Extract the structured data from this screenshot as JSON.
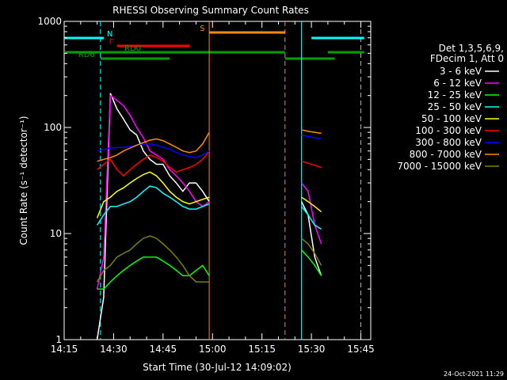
{
  "chart_data": {
    "type": "line",
    "title": "RHESSI Observing Summary Count Rates",
    "xlabel": "Start Time (30-Jul-12 14:09:02)",
    "ylabel": "Count Rate (s⁻¹ detector⁻¹)",
    "ylog": true,
    "ylim": [
      1,
      1000
    ],
    "xlim_minutes": [
      14.15,
      15.48
    ],
    "x_ticks": [
      "14:15",
      "14:30",
      "14:45",
      "15:00",
      "15:15",
      "15:30",
      "15:45"
    ],
    "y_ticks": [
      "1",
      "10",
      "100",
      "1000"
    ],
    "legend_header": [
      "Det 1,3,5,6,9,",
      "FDecim 1, Att 0"
    ],
    "legend_position": "right",
    "footer_date": "24-Oct-2021 11:29",
    "flags": [
      {
        "label": "N",
        "color": "#00ffff",
        "segments": [
          [
            14.15,
            14.27
          ],
          [
            15.3,
            15.46
          ]
        ]
      },
      {
        "label": "F",
        "color": "#ff0000",
        "segments": [
          [
            14.31,
            14.53
          ]
        ]
      },
      {
        "label": "S",
        "color": "#ff8c00",
        "segments": [
          [
            14.59,
            15.22
          ]
        ]
      },
      {
        "label": "RD0",
        "color": "#00a000",
        "segments": [
          [
            14.15,
            15.22
          ],
          [
            15.35,
            15.46
          ]
        ]
      },
      {
        "label": "RD6",
        "color": "#00a000",
        "segments": [
          [
            14.26,
            14.47
          ],
          [
            15.22,
            15.37
          ]
        ]
      }
    ],
    "vlines": [
      {
        "x": 14.26,
        "color": "#00ffff",
        "style": "dashed"
      },
      {
        "x": 14.59,
        "color": "#ff8c00",
        "style": "solid"
      },
      {
        "x": 15.22,
        "color": "#ff8c00",
        "style": "dashed"
      },
      {
        "x": 15.27,
        "color": "#00ffff",
        "style": "solid"
      },
      {
        "x": 15.45,
        "color": "#00ffff",
        "style": "dashed"
      }
    ],
    "x": [
      14.25,
      14.27,
      14.29,
      14.31,
      14.33,
      14.35,
      14.37,
      14.39,
      14.41,
      14.43,
      14.45,
      14.47,
      14.49,
      14.51,
      14.53,
      14.55,
      14.57,
      14.59
    ],
    "x2": [
      15.27,
      15.29,
      15.31,
      15.33
    ],
    "series": [
      {
        "name": "3 - 6 keV",
        "color": "#ffffff",
        "values": [
          1,
          2.5,
          210,
          150,
          120,
          95,
          85,
          60,
          50,
          45,
          45,
          35,
          30,
          25,
          30,
          30,
          25,
          20
        ],
        "values2": [
          20,
          15,
          6,
          4
        ]
      },
      {
        "name": "6 - 12 keV",
        "color": "#ff00ff",
        "values": [
          3,
          6,
          200,
          180,
          160,
          130,
          100,
          80,
          60,
          55,
          50,
          40,
          35,
          30,
          25,
          20,
          18,
          20
        ],
        "values2": [
          30,
          25,
          12,
          8
        ]
      },
      {
        "name": "12 - 25 keV",
        "color": "#00ff00",
        "values": [
          3,
          3,
          3.5,
          4,
          4.5,
          5,
          5.5,
          6,
          6,
          6,
          5.5,
          5,
          4.5,
          4,
          4,
          4.5,
          5,
          4
        ],
        "values2": [
          7,
          6,
          5,
          4
        ]
      },
      {
        "name": "25 - 50 keV",
        "color": "#00ffff",
        "values": [
          12,
          15,
          18,
          18,
          19,
          20,
          22,
          25,
          28,
          27,
          24,
          22,
          20,
          18,
          17,
          17,
          18,
          19
        ],
        "values2": [
          18,
          15,
          12,
          11
        ]
      },
      {
        "name": "50 - 100 keV",
        "color": "#ffff00",
        "values": [
          14,
          20,
          22,
          25,
          27,
          30,
          33,
          36,
          38,
          35,
          30,
          25,
          22,
          20,
          19,
          20,
          21,
          22
        ],
        "values2": [
          22,
          20,
          18,
          16
        ]
      },
      {
        "name": "100 - 300 keV",
        "color": "#ff0000",
        "values": [
          40,
          45,
          50,
          40,
          35,
          40,
          45,
          50,
          55,
          52,
          48,
          42,
          38,
          40,
          42,
          45,
          50,
          60
        ],
        "values2": [
          48,
          46,
          44,
          42
        ]
      },
      {
        "name": "300 - 800 keV",
        "color": "#0000ff",
        "values": [
          60,
          62,
          64,
          65,
          65,
          66,
          68,
          70,
          70,
          68,
          65,
          62,
          58,
          55,
          53,
          52,
          55,
          60
        ],
        "values2": [
          85,
          82,
          80,
          78
        ]
      },
      {
        "name": "800 - 7000 keV",
        "color": "#ff8c00",
        "values": [
          48,
          50,
          52,
          55,
          60,
          64,
          68,
          72,
          76,
          78,
          75,
          70,
          65,
          60,
          58,
          60,
          70,
          90
        ],
        "values2": [
          95,
          92,
          90,
          88
        ]
      },
      {
        "name": "7000 - 15000 keV",
        "color": "#808000",
        "values": [
          3.5,
          4.5,
          5,
          6,
          6.5,
          7,
          8,
          9,
          9.5,
          9,
          8,
          7,
          6,
          5,
          4,
          3.5,
          3.5,
          3.5
        ],
        "values2": [
          9,
          8,
          6.5,
          5
        ]
      }
    ]
  }
}
